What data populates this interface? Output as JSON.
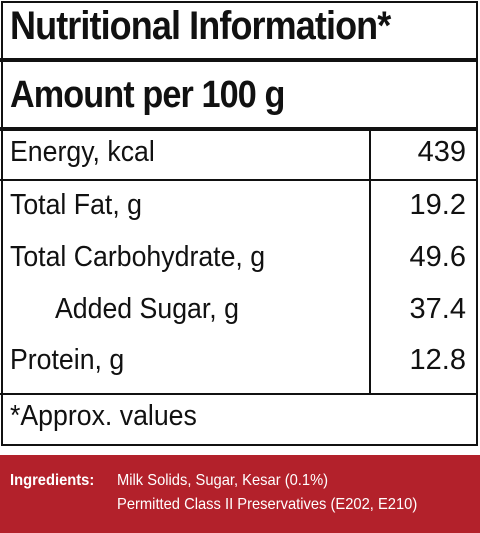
{
  "header": {
    "title": "Nutritional Information*",
    "subtitle": "Amount per 100 g"
  },
  "table": {
    "rows": [
      [
        "Energy, kcal",
        "439"
      ],
      [
        "Total Fat, g",
        "19.2"
      ],
      [
        "Total Carbohydrate, g",
        "49.6"
      ],
      [
        "Added Sugar, g",
        "37.4"
      ],
      [
        "Protein, g",
        "12.8"
      ]
    ]
  },
  "footnote": "*Approx. values",
  "ingredients": {
    "label": "Ingredients:",
    "lines": [
      "Milk Solids, Sugar, Kesar (0.1%)",
      "Permitted Class II Preservatives (E202, E210)"
    ]
  }
}
